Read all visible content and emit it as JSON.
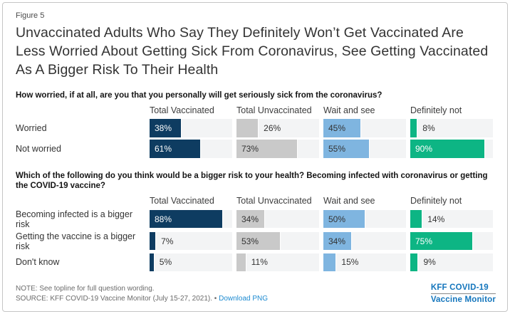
{
  "figure_label": "Figure 5",
  "title": "Unvaccinated Adults Who Say They Definitely Won’t Get Vaccinated Are Less Worried About Getting Sick From Coronavirus, See Getting Vaccinated As A Bigger Risk To Their Health",
  "chart_data": [
    {
      "type": "bar",
      "orientation": "horizontal",
      "question": "How worried, if at all, are you that you personally will get seriously sick from the coronavirus?",
      "groups": [
        "Total Vaccinated",
        "Total Unvaccinated",
        "Wait and see",
        "Definitely not"
      ],
      "categories": [
        "Worried",
        "Not worried"
      ],
      "values": [
        [
          38,
          26,
          45,
          8
        ],
        [
          61,
          73,
          55,
          90
        ]
      ],
      "unit": "%",
      "xlim": [
        0,
        100
      ],
      "grid": false,
      "legend_position": "column-headers"
    },
    {
      "type": "bar",
      "orientation": "horizontal",
      "question": "Which of the following do you think would be a bigger risk to your health? Becoming infected with coronavirus or getting the COVID-19 vaccine?",
      "groups": [
        "Total Vaccinated",
        "Total Unvaccinated",
        "Wait and see",
        "Definitely not"
      ],
      "categories": [
        "Becoming infected is a bigger risk",
        "Getting the vaccine is a bigger risk",
        "Don't know"
      ],
      "values": [
        [
          88,
          34,
          50,
          14
        ],
        [
          7,
          53,
          34,
          75
        ],
        [
          5,
          11,
          15,
          9
        ]
      ],
      "unit": "%",
      "xlim": [
        0,
        100
      ],
      "grid": false,
      "legend_position": "column-headers"
    }
  ],
  "styles": {
    "group_colors": [
      "#0e3c61",
      "#c9c9c9",
      "#7fb5e0",
      "#0db584"
    ],
    "dark_fills": [
      true,
      false,
      false,
      true
    ],
    "track_color": "#f3f4f5",
    "inside_label_threshold": 30,
    "inside_label_color": "#ffffff",
    "outside_label_color": "#333333",
    "link_color": "#1e8bd1",
    "logo_color": "#1375bc"
  },
  "footer": {
    "note": "NOTE: See topline for full question wording.",
    "source": "SOURCE: KFF COVID-19 Vaccine Monitor (July 15-27, 2021). •",
    "download_label": "Download PNG",
    "logo_line1": "KFF COVID-19",
    "logo_line2": "Vaccine Monitor"
  }
}
